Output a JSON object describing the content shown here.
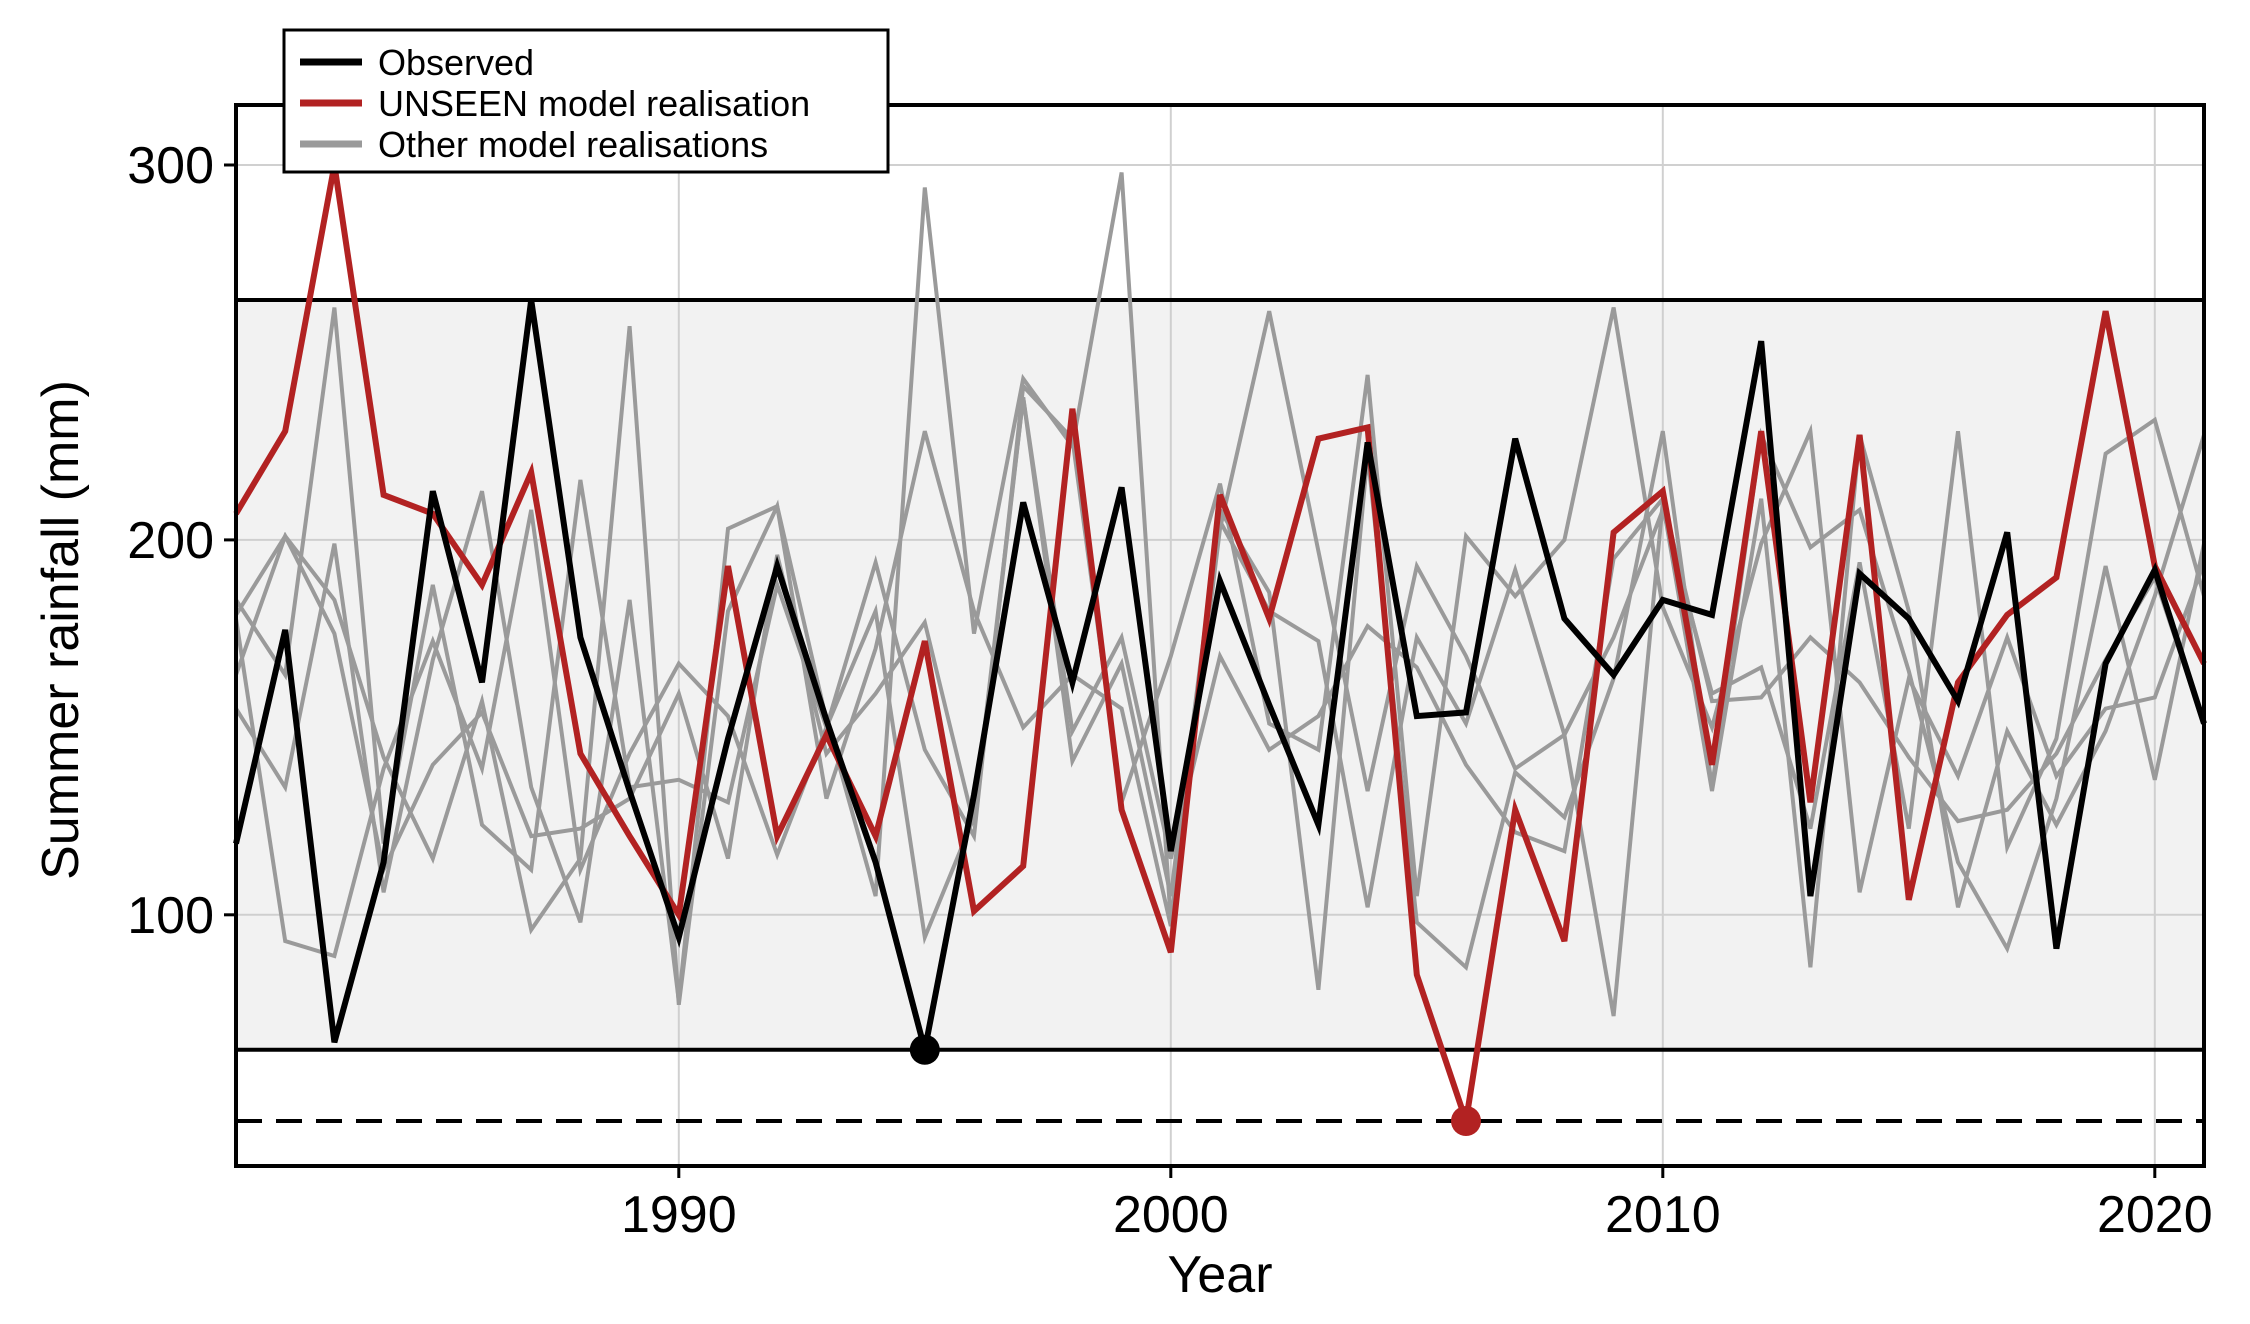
{
  "chart_data": {
    "type": "line",
    "xlabel": "Year",
    "ylabel": "Summer rainfall (mm)",
    "xlim": [
      1981,
      2021
    ],
    "ylim": [
      33,
      316
    ],
    "x_ticks": [
      1990,
      2000,
      2010,
      2020
    ],
    "y_ticks": [
      100,
      200,
      300
    ],
    "grid": true,
    "legend_position": "top-left",
    "colors": {
      "observed": "#000000",
      "unseen": "#b22222",
      "other": "#9a9a9a",
      "band": "#f2f2f2"
    },
    "reference_band": {
      "lower": 64,
      "upper": 264
    },
    "reference_line": {
      "value": 45,
      "style": "dashed"
    },
    "highlight_points": [
      {
        "series": "Observed",
        "x": 1995,
        "y": 64
      },
      {
        "series": "UNSEEN model realisation",
        "x": 2006,
        "y": 45
      }
    ],
    "x": [
      1981,
      1982,
      1983,
      1984,
      1985,
      1986,
      1987,
      1988,
      1989,
      1990,
      1991,
      1992,
      1993,
      1994,
      1995,
      1996,
      1997,
      1998,
      1999,
      2000,
      2001,
      2002,
      2003,
      2004,
      2005,
      2006,
      2007,
      2008,
      2009,
      2010,
      2011,
      2012,
      2013,
      2014,
      2015,
      2016,
      2017,
      2018,
      2019,
      2020,
      2021
    ],
    "series": [
      {
        "name": "Observed",
        "role": "observed",
        "values": [
          119,
          176,
          66,
          114,
          213,
          162,
          264,
          174,
          133,
          94,
          147,
          193,
          152,
          114,
          64,
          132,
          210,
          162,
          214,
          117,
          189,
          156,
          124,
          226,
          153,
          154,
          227,
          179,
          164,
          184,
          180,
          253,
          105,
          191,
          179,
          157,
          202,
          91,
          167,
          192,
          151
        ]
      },
      {
        "name": "UNSEEN model realisation",
        "role": "unseen",
        "values": [
          207,
          229,
          300,
          212,
          207,
          188,
          218,
          143,
          121,
          100,
          193,
          121,
          148,
          121,
          173,
          101,
          113,
          235,
          128,
          90,
          212,
          179,
          227,
          230,
          84,
          45,
          128,
          93,
          202,
          213,
          140,
          229,
          130,
          228,
          104,
          162,
          180,
          190,
          261,
          193,
          167
        ]
      },
      {
        "name": "Other model realisations",
        "role": "other",
        "values": [
          184,
          164,
          262,
          119,
          188,
          124,
          112,
          216,
          134,
          136,
          130,
          188,
          150,
          194,
          144,
          121,
          241,
          227,
          130,
          169,
          215,
          151,
          144,
          244,
          105,
          201,
          185,
          200,
          262,
          182,
          150,
          199,
          229,
          106,
          163,
          137,
          174,
          137,
          155,
          158,
          194
        ]
      },
      {
        "name": "",
        "role": "other",
        "values": [
          164,
          201,
          184,
          142,
          115,
          157,
          96,
          115,
          257,
          76,
          181,
          209,
          131,
          171,
          229,
          181,
          150,
          164,
          155,
          97,
          203,
          261,
          197,
          133,
          193,
          169,
          139,
          148,
          73,
          210,
          133,
          211,
          86,
          228,
          181,
          102,
          149,
          124,
          149,
          185,
          228
        ]
      },
      {
        "name": "",
        "role": "other",
        "values": [
          155,
          134,
          199,
          106,
          168,
          213,
          134,
          98,
          184,
          77,
          203,
          209,
          152,
          105,
          294,
          175,
          243,
          225,
          298,
          98,
          205,
          181,
          173,
          102,
          174,
          151,
          192,
          148,
          174,
          208,
          159,
          166,
          123,
          194,
          123,
          229,
          118,
          147,
          223,
          232,
          185
        ]
      },
      {
        "name": "",
        "role": "other",
        "values": [
          179,
          93,
          89,
          139,
          173,
          139,
          208,
          112,
          143,
          167,
          153,
          116,
          150,
          181,
          94,
          126,
          238,
          141,
          167,
          105,
          208,
          186,
          80,
          223,
          98,
          86,
          138,
          126,
          163,
          229,
          134,
          228,
          198,
          208,
          165,
          114,
          91,
          131,
          193,
          136,
          199
        ]
      },
      {
        "name": "",
        "role": "other",
        "values": [
          180,
          201,
          175,
          112,
          140,
          154,
          121,
          123,
          131,
          159,
          115,
          196,
          143,
          159,
          178,
          124,
          238,
          149,
          174,
          115,
          169,
          144,
          153,
          177,
          166,
          140,
          122,
          117,
          195,
          211,
          157,
          158,
          174,
          162,
          142,
          125,
          128,
          143,
          168,
          190,
          151
        ]
      }
    ]
  },
  "legend": [
    {
      "label": "Observed",
      "color": "#000000"
    },
    {
      "label": "UNSEEN model realisation",
      "color": "#b22222"
    },
    {
      "label": "Other model realisations",
      "color": "#9a9a9a"
    }
  ]
}
